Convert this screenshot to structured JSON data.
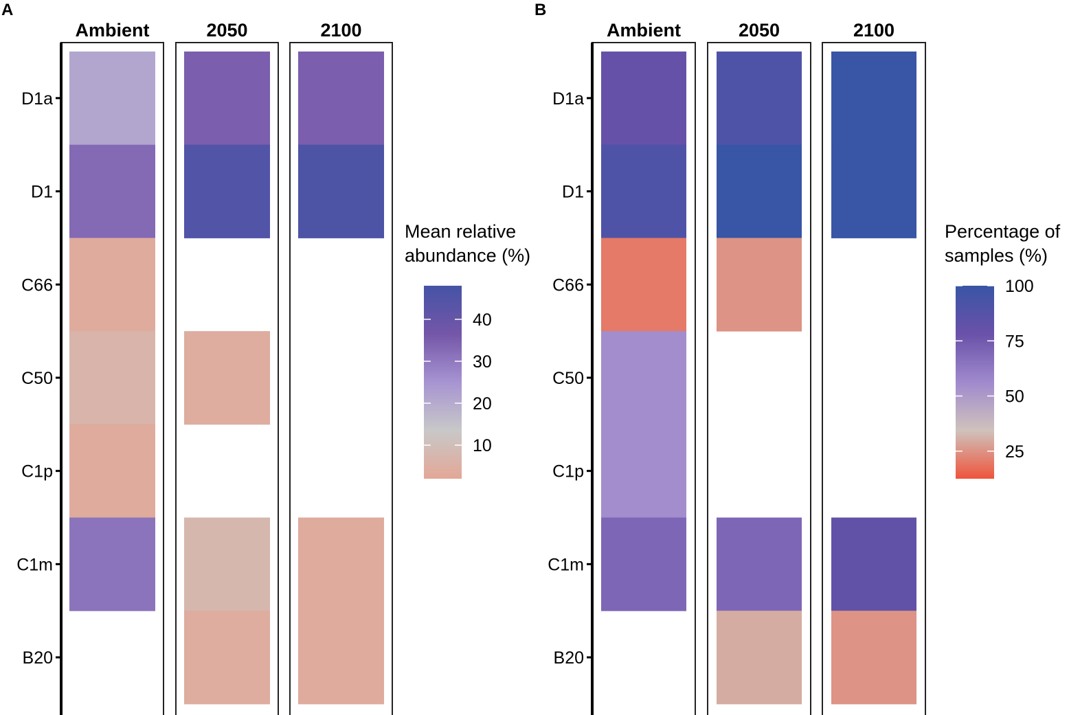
{
  "chart_data": [
    {
      "panel": "A",
      "type": "heatmap",
      "facets": [
        "Ambient",
        "2050",
        "2100"
      ],
      "categories": [
        "D1a",
        "D1",
        "C66",
        "C50",
        "C1p",
        "C1m",
        "B20"
      ],
      "legend_title": [
        "Mean relative",
        "abundance (%)"
      ],
      "legend_ticks": [
        10,
        20,
        30,
        40
      ],
      "scale_range": [
        2,
        48
      ],
      "scale_colors": [
        "#e3a797",
        "#c8c8c8",
        "#a794d2",
        "#7456a8",
        "#4553a6"
      ],
      "values": {
        "Ambient": [
          21,
          33,
          3.5,
          6.5,
          3.5,
          31,
          null
        ],
        "2050": [
          35,
          45,
          null,
          4,
          null,
          7.5,
          4
        ],
        "2100": [
          35,
          46,
          null,
          null,
          null,
          3.5,
          3.5
        ]
      }
    },
    {
      "panel": "B",
      "type": "heatmap",
      "facets": [
        "Ambient",
        "2050",
        "2100"
      ],
      "categories": [
        "D1a",
        "D1",
        "C66",
        "C50",
        "C1p",
        "C1m",
        "B20"
      ],
      "legend_title": [
        "Percentage of",
        "samples (%)"
      ],
      "legend_ticks": [
        25,
        50,
        75,
        100
      ],
      "scale_range": [
        12.5,
        100
      ],
      "scale_colors": [
        "#ef543b",
        "#cfc2bc",
        "#a08acd",
        "#6a51a9",
        "#3955a5"
      ],
      "values": {
        "Ambient": [
          80,
          90,
          20,
          55,
          55,
          70,
          null
        ],
        "2050": [
          90,
          100,
          25,
          null,
          null,
          70,
          30
        ],
        "2100": [
          100,
          100,
          null,
          null,
          null,
          82,
          25
        ]
      }
    }
  ]
}
